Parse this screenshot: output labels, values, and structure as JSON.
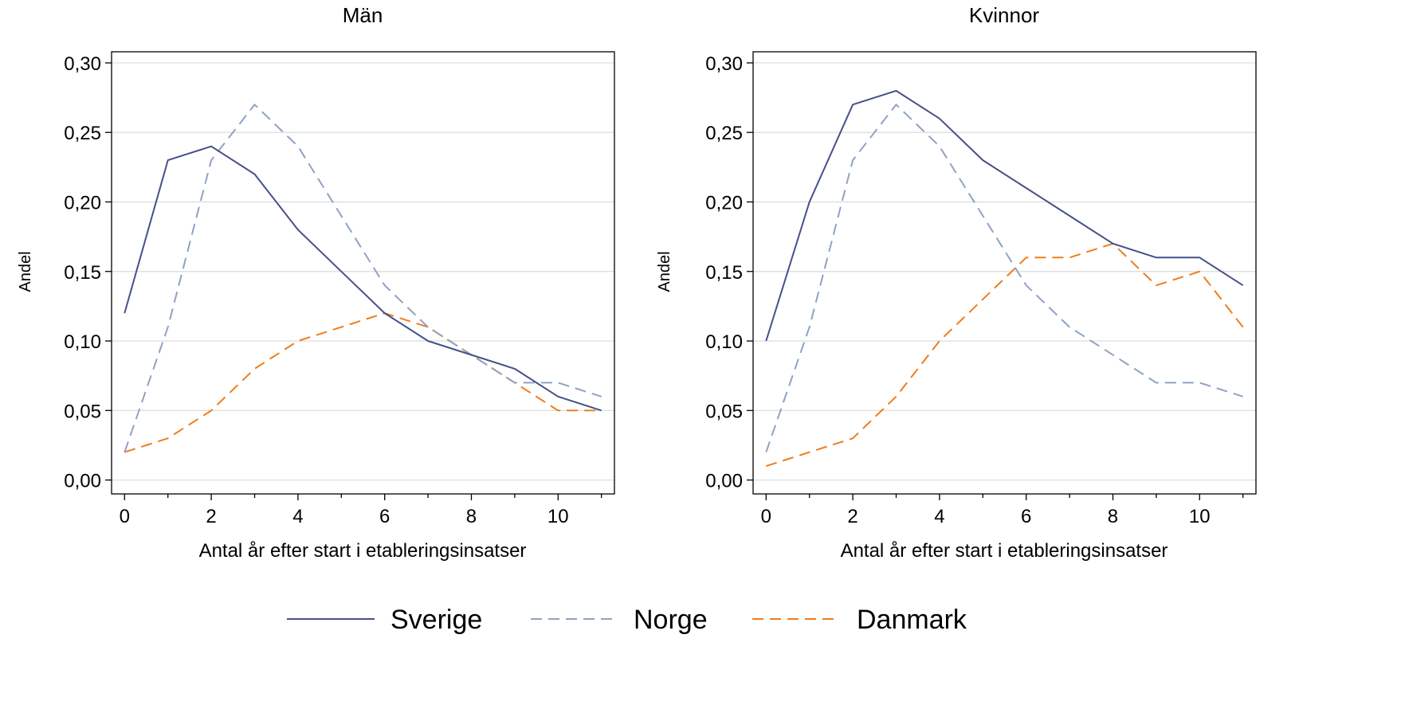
{
  "chart_data": [
    {
      "type": "line",
      "title": "Män",
      "xlabel": "Antal år efter start i etableringsinsatser",
      "ylabel": "Andel",
      "xlim": [
        -0.3,
        11.3
      ],
      "ylim": [
        -0.01,
        0.308
      ],
      "xticks": [
        0,
        2,
        4,
        6,
        8,
        10
      ],
      "xtick_labels": [
        "0",
        "2",
        "4",
        "6",
        "8",
        "10"
      ],
      "yticks": [
        0,
        0.05,
        0.1,
        0.15,
        0.2,
        0.25,
        0.3
      ],
      "ytick_labels": [
        "0,00",
        "0,05",
        "0,10",
        "0,15",
        "0,20",
        "0,25",
        "0,30"
      ],
      "grid": true,
      "x": [
        0,
        1,
        2,
        3,
        4,
        5,
        6,
        7,
        8,
        9,
        10,
        11
      ],
      "series": [
        {
          "name": "Sverige",
          "values": [
            0.12,
            0.23,
            0.24,
            0.22,
            0.18,
            0.15,
            0.12,
            0.1,
            0.09,
            0.08,
            0.06,
            0.05
          ]
        },
        {
          "name": "Norge",
          "values": [
            0.02,
            0.11,
            0.23,
            0.27,
            0.24,
            0.19,
            0.14,
            0.11,
            0.09,
            0.07,
            0.07,
            0.06
          ]
        },
        {
          "name": "Danmark",
          "values": [
            0.02,
            0.03,
            0.05,
            0.08,
            0.1,
            0.11,
            0.12,
            0.11,
            0.09,
            0.07,
            0.05,
            0.05
          ]
        }
      ]
    },
    {
      "type": "line",
      "title": "Kvinnor",
      "xlabel": "Antal år efter start i etableringsinsatser",
      "ylabel": "Andel",
      "xlim": [
        -0.3,
        11.3
      ],
      "ylim": [
        -0.01,
        0.308
      ],
      "xticks": [
        0,
        2,
        4,
        6,
        8,
        10
      ],
      "xtick_labels": [
        "0",
        "2",
        "4",
        "6",
        "8",
        "10"
      ],
      "yticks": [
        0,
        0.05,
        0.1,
        0.15,
        0.2,
        0.25,
        0.3
      ],
      "ytick_labels": [
        "0,00",
        "0,05",
        "0,10",
        "0,15",
        "0,20",
        "0,25",
        "0,30"
      ],
      "grid": true,
      "x": [
        0,
        1,
        2,
        3,
        4,
        5,
        6,
        7,
        8,
        9,
        10,
        11
      ],
      "series": [
        {
          "name": "Sverige",
          "values": [
            0.1,
            0.2,
            0.27,
            0.28,
            0.26,
            0.23,
            0.21,
            0.19,
            0.17,
            0.16,
            0.16,
            0.14
          ]
        },
        {
          "name": "Norge",
          "values": [
            0.02,
            0.11,
            0.23,
            0.27,
            0.24,
            0.19,
            0.14,
            0.11,
            0.09,
            0.07,
            0.07,
            0.06
          ]
        },
        {
          "name": "Danmark",
          "values": [
            0.01,
            0.02,
            0.03,
            0.06,
            0.1,
            0.13,
            0.16,
            0.16,
            0.17,
            0.14,
            0.15,
            0.11
          ]
        }
      ]
    }
  ],
  "legend": {
    "placement": "bottom",
    "items": [
      {
        "label": "Sverige",
        "color": "#45508a",
        "style": "solid"
      },
      {
        "label": "Norge",
        "color": "#8fa2c4",
        "style": "dashed"
      },
      {
        "label": "Danmark",
        "color": "#ef7d1a",
        "style": "dashed"
      }
    ]
  },
  "colors": {
    "Sverige": "#45508a",
    "Norge": "#8fa2c4",
    "Danmark": "#ef7d1a",
    "grid": "#dcdcdc",
    "axis": "#000000"
  }
}
